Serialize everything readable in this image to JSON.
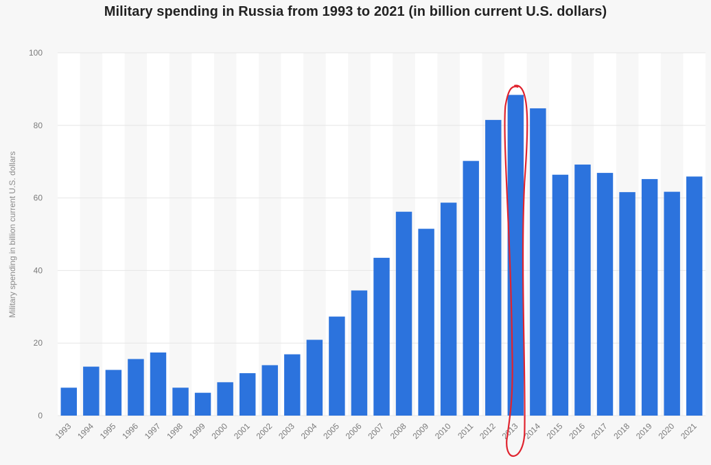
{
  "chart_data": {
    "type": "bar",
    "title": "Military spending in Russia from 1993 to 2021 (in billion current U.S. dollars)",
    "xlabel": "",
    "ylabel": "Military spending in billion current U.S. dollars",
    "ylim": [
      0,
      100
    ],
    "yticks": [
      0,
      20,
      40,
      60,
      80,
      100
    ],
    "grid": true,
    "highlighted_category": "2013",
    "categories": [
      "1993",
      "1994",
      "1995",
      "1996",
      "1997",
      "1998",
      "1999",
      "2000",
      "2001",
      "2002",
      "2003",
      "2004",
      "2005",
      "2006",
      "2007",
      "2008",
      "2009",
      "2010",
      "2011",
      "2012",
      "2013",
      "2014",
      "2015",
      "2016",
      "2017",
      "2018",
      "2019",
      "2020",
      "2021"
    ],
    "values": [
      7.7,
      13.5,
      12.6,
      15.6,
      17.4,
      7.7,
      6.3,
      9.2,
      11.7,
      13.9,
      16.9,
      20.9,
      27.3,
      34.5,
      43.5,
      56.2,
      51.5,
      58.7,
      70.2,
      81.5,
      88.4,
      84.7,
      66.4,
      69.2,
      66.9,
      61.6,
      65.2,
      61.7,
      65.9
    ],
    "colors": {
      "bar": "#2c73dd",
      "grid": "#e6e6e6",
      "band": "#ffffff",
      "highlight": "#e0232e"
    }
  }
}
